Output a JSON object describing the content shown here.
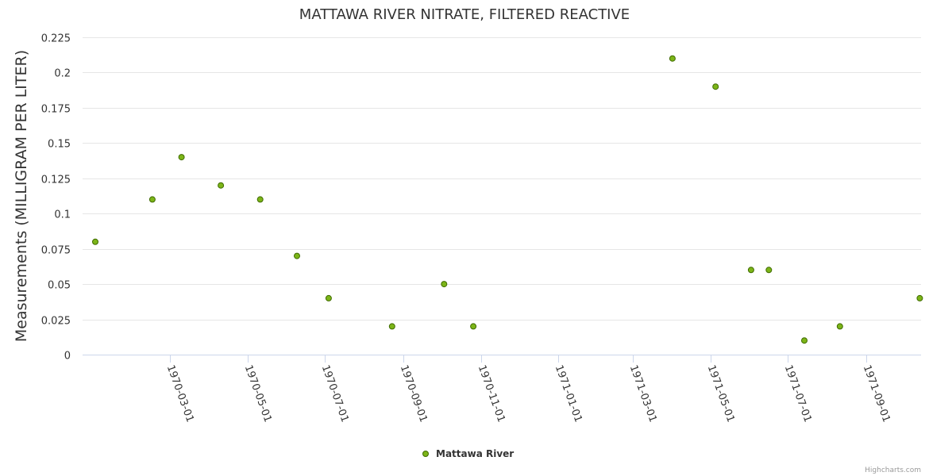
{
  "chart_data": {
    "type": "scatter",
    "title": "MATTAWA RIVER NITRATE, FILTERED REACTIVE",
    "xlabel": "",
    "ylabel": "Measurements (MILLIGRAM PER LITER)",
    "ylim": [
      0,
      0.225
    ],
    "yticks": [
      "0",
      "0.025",
      "0.05",
      "0.075",
      "0.1",
      "0.125",
      "0.15",
      "0.175",
      "0.2",
      "0.225"
    ],
    "xlim": [
      "1969-12-22",
      "1971-10-14"
    ],
    "xticks": [
      "1970-03-01",
      "1970-05-01",
      "1970-07-01",
      "1970-09-01",
      "1970-11-01",
      "1971-01-01",
      "1971-03-01",
      "1971-05-01",
      "1971-07-01",
      "1971-09-01"
    ],
    "grid": true,
    "legend_position": "bottom-center",
    "series": [
      {
        "name": "Mattawa River",
        "color": "#7cb518",
        "points": [
          {
            "x": "1970-01-01",
            "y": 0.08
          },
          {
            "x": "1970-02-15",
            "y": 0.11
          },
          {
            "x": "1970-03-10",
            "y": 0.14
          },
          {
            "x": "1970-04-10",
            "y": 0.12
          },
          {
            "x": "1970-05-11",
            "y": 0.11
          },
          {
            "x": "1970-06-09",
            "y": 0.07
          },
          {
            "x": "1970-07-04",
            "y": 0.04
          },
          {
            "x": "1970-08-23",
            "y": 0.02
          },
          {
            "x": "1970-10-03",
            "y": 0.05
          },
          {
            "x": "1970-10-26",
            "y": 0.02
          },
          {
            "x": "1971-04-01",
            "y": 0.21
          },
          {
            "x": "1971-05-05",
            "y": 0.19
          },
          {
            "x": "1971-06-02",
            "y": 0.06
          },
          {
            "x": "1971-06-16",
            "y": 0.06
          },
          {
            "x": "1971-07-14",
            "y": 0.01
          },
          {
            "x": "1971-08-11",
            "y": 0.02
          },
          {
            "x": "1971-10-13",
            "y": 0.04
          }
        ]
      }
    ]
  },
  "credits": "Highcharts.com"
}
